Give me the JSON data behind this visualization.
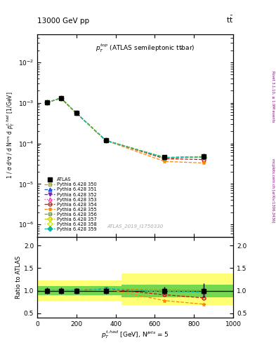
{
  "title_top": "13000 GeV pp",
  "title_right": "tt̅",
  "inner_title": "$p_T^{top}$ (ATLAS semileptonic tt̅bar)",
  "watermark": "ATLAS_2019_I1750330",
  "right_label_top": "Rivet 3.1.10, ≥ 1.9M events",
  "right_label_bot": "mcplots.cern.ch [arXiv:1306.3436]",
  "ylabel_main": "1 / σ d²σ / d N$^{\\rm nrs}$ d $p_T^{t,had}$ [1/GeV]",
  "ylabel_ratio": "Ratio to ATLAS",
  "xlabel": "$p_T^{t,had}$ [GeV], N$^{jets}$ = 5",
  "xdata": [
    50,
    120,
    200,
    350,
    650,
    850
  ],
  "atlas_y": [
    0.00102,
    0.00132,
    0.00056,
    0.000118,
    4.55e-05,
    4.75e-05
  ],
  "atlas_yerr_lo": [
    7e-05,
    9e-05,
    3.5e-05,
    8e-06,
    4e-06,
    8e-06
  ],
  "atlas_yerr_hi": [
    7e-05,
    9e-05,
    3.5e-05,
    8e-06,
    4e-06,
    8e-06
  ],
  "series": [
    {
      "label": "Pythia 6.428 350",
      "color": "#aaaa00",
      "linestyle": "--",
      "marker": "s",
      "markerfill": "none",
      "y": [
        0.00102,
        0.00132,
        0.00056,
        0.000118,
        4.55e-05,
        4.75e-05
      ],
      "ratio": [
        1.01,
        1.01,
        1.005,
        1.04,
        1.02,
        1.01
      ]
    },
    {
      "label": "Pythia 6.428 351",
      "color": "#2255dd",
      "linestyle": "--",
      "marker": "^",
      "markerfill": "#2255dd",
      "y": [
        0.00102,
        0.00132,
        0.00056,
        0.000118,
        4.45e-05,
        4.65e-05
      ],
      "ratio": [
        1.01,
        1.01,
        1.005,
        1.04,
        0.98,
        0.97
      ]
    },
    {
      "label": "Pythia 6.428 352",
      "color": "#7722bb",
      "linestyle": "--",
      "marker": "v",
      "markerfill": "#7722bb",
      "y": [
        0.00102,
        0.00132,
        0.00056,
        0.000118,
        4.45e-05,
        4.65e-05
      ],
      "ratio": [
        1.01,
        1.01,
        1.005,
        1.04,
        0.98,
        0.97
      ]
    },
    {
      "label": "Pythia 6.428 353",
      "color": "#ee44aa",
      "linestyle": ":",
      "marker": "^",
      "markerfill": "none",
      "y": [
        0.00102,
        0.00132,
        0.00056,
        0.000118,
        4.45e-05,
        4.65e-05
      ],
      "ratio": [
        1.01,
        1.01,
        1.005,
        1.04,
        0.98,
        0.97
      ]
    },
    {
      "label": "Pythia 6.428 354",
      "color": "#cc1111",
      "linestyle": "--",
      "marker": "o",
      "markerfill": "none",
      "y": [
        0.00102,
        0.00132,
        0.00056,
        0.000118,
        4.2e-05,
        4e-05
      ],
      "ratio": [
        1.01,
        1.01,
        1.005,
        1.04,
        0.91,
        0.84
      ]
    },
    {
      "label": "Pythia 6.428 355",
      "color": "#ff8800",
      "linestyle": "--",
      "marker": "*",
      "markerfill": "#ff8800",
      "y": [
        0.00102,
        0.00132,
        0.00056,
        0.000118,
        3.6e-05,
        3.3e-05
      ],
      "ratio": [
        1.0,
        1.01,
        1.005,
        1.04,
        0.78,
        0.7
      ]
    },
    {
      "label": "Pythia 6.428 356",
      "color": "#66aa22",
      "linestyle": "--",
      "marker": "s",
      "markerfill": "none",
      "y": [
        0.00102,
        0.00132,
        0.00056,
        0.000118,
        4.45e-05,
        4.65e-05
      ],
      "ratio": [
        1.01,
        1.01,
        1.005,
        1.04,
        0.98,
        0.97
      ]
    },
    {
      "label": "Pythia 6.428 357",
      "color": "#cccc00",
      "linestyle": "--",
      "marker": "D",
      "markerfill": "none",
      "y": [
        0.00102,
        0.00132,
        0.00056,
        0.000118,
        4.45e-05,
        4.65e-05
      ],
      "ratio": [
        1.01,
        1.01,
        1.005,
        1.04,
        0.98,
        0.97
      ]
    },
    {
      "label": "Pythia 6.428 358",
      "color": "#ccee00",
      "linestyle": ":",
      "marker": "D",
      "markerfill": "none",
      "y": [
        0.00102,
        0.00132,
        0.00056,
        0.000118,
        4.45e-05,
        4.65e-05
      ],
      "ratio": [
        1.01,
        1.01,
        1.005,
        1.04,
        0.98,
        0.97
      ]
    },
    {
      "label": "Pythia 6.428 359",
      "color": "#00bbaa",
      "linestyle": "--",
      "marker": "D",
      "markerfill": "#00bbaa",
      "y": [
        0.00102,
        0.00132,
        0.00056,
        0.000118,
        4.45e-05,
        4.65e-05
      ],
      "ratio": [
        1.01,
        1.01,
        1.005,
        1.04,
        0.98,
        0.97
      ]
    }
  ],
  "xlim": [
    0,
    1000
  ],
  "ylim_main": [
    5e-07,
    0.05
  ],
  "ylim_ratio": [
    0.4,
    2.2
  ],
  "ratio_yticks": [
    0.5,
    1.0,
    1.5,
    2.0
  ],
  "band1_xmax": 430,
  "band1_green_lo": 0.9,
  "band1_green_hi": 1.1,
  "band1_yellow_lo": 0.78,
  "band1_yellow_hi": 1.22,
  "band2_xmin": 430,
  "band2_green_lo": 0.86,
  "band2_green_hi": 1.14,
  "band2_yellow_lo": 0.68,
  "band2_yellow_hi": 1.38
}
